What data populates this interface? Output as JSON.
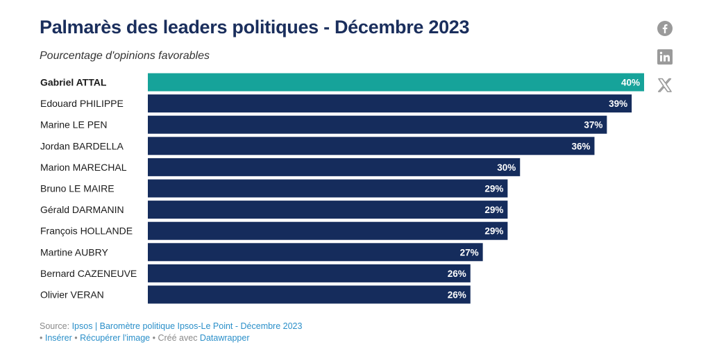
{
  "title": "Palmarès des leaders politiques - Décembre 2023",
  "subtitle": "Pourcentage d'opinions favorables",
  "chart_data": {
    "type": "bar",
    "orientation": "horizontal",
    "title": "Palmarès des leaders politiques - Décembre 2023",
    "subtitle": "Pourcentage d'opinions favorables",
    "categories": [
      "Gabriel ATTAL",
      "Edouard PHILIPPE",
      "Marine LE PEN",
      "Jordan BARDELLA",
      "Marion MARECHAL",
      "Bruno LE MAIRE",
      "Gérald DARMANIN",
      "François HOLLANDE",
      "Martine AUBRY",
      "Bernard CAZENEUVE",
      "Olivier VERAN"
    ],
    "values": [
      40,
      39,
      37,
      36,
      30,
      29,
      29,
      29,
      27,
      26,
      26
    ],
    "labels": [
      "40%",
      "39%",
      "37%",
      "36%",
      "30%",
      "29%",
      "29%",
      "29%",
      "27%",
      "26%",
      "26%"
    ],
    "highlight_index": 0,
    "xlim": [
      0,
      40
    ],
    "colors": {
      "highlight": "#16a39a",
      "default": "#152c5c",
      "value_label": "#ffffff"
    }
  },
  "social": {
    "facebook": "facebook-icon",
    "linkedin": "linkedin-icon",
    "x": "x-icon"
  },
  "footer": {
    "source_prefix": "Source: ",
    "source_link": "Ipsos | Baromètre politique Ipsos-Le Point - Décembre 2023",
    "bullet": " • ",
    "embed": "Insérer",
    "get_image": "Récupérer l'image",
    "created_with": "Créé avec ",
    "tool": "Datawrapper"
  }
}
